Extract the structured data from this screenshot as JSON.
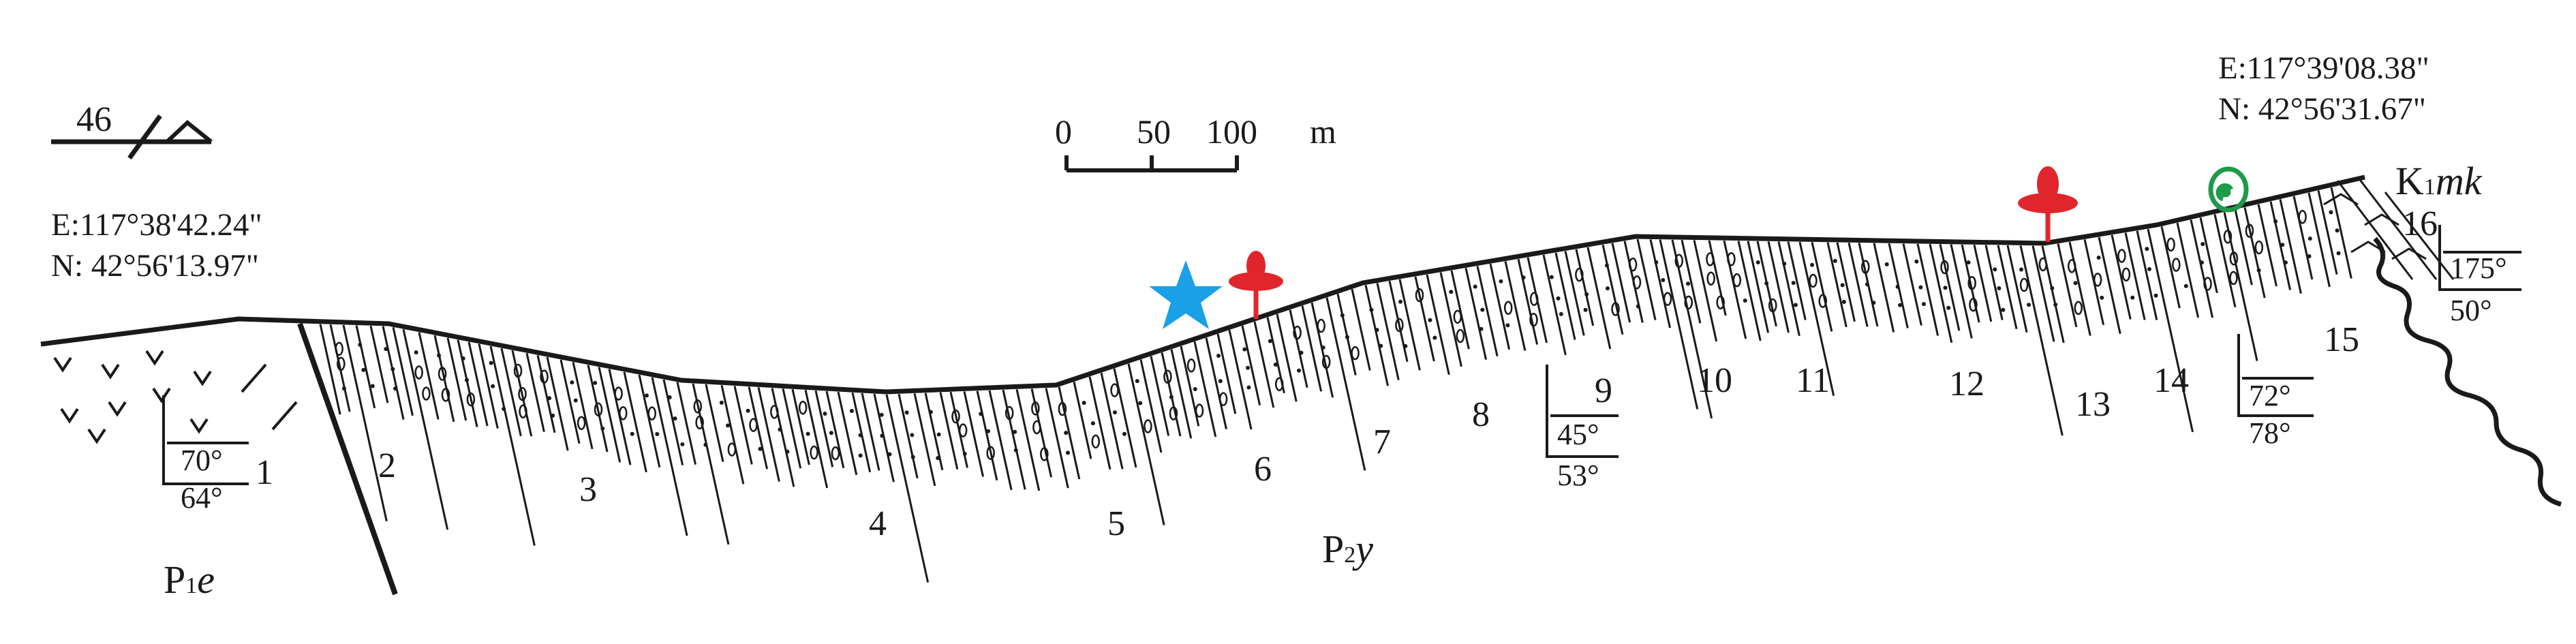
{
  "header": {
    "scale_ticks": [
      "0",
      "50",
      "100"
    ],
    "scale_unit": "m",
    "orientation_value": "46"
  },
  "coordinates": {
    "start": {
      "e": "E:117°38'42.24\"",
      "n": "N:  42°56'13.97\""
    },
    "end": {
      "e": "E:117°39'08.38\"",
      "n": "N:  42°56'31.67\""
    }
  },
  "units": [
    {
      "code": "P",
      "sub": "1",
      "italic": "e"
    },
    {
      "code": "P",
      "sub": "2",
      "italic": "y"
    },
    {
      "code": "K",
      "sub": "1",
      "italic": "mk"
    }
  ],
  "beds": [
    "1",
    "2",
    "3",
    "4",
    "5",
    "6",
    "7",
    "8",
    "9",
    "10",
    "11",
    "12",
    "13",
    "14",
    "15",
    "16"
  ],
  "attitudes": [
    {
      "top": "70°",
      "bottom": "64°"
    },
    {
      "top": "45°",
      "bottom": "53°"
    },
    {
      "top": "72°",
      "bottom": "78°"
    },
    {
      "top": "175°",
      "bottom": "50°"
    }
  ],
  "symbol_colors": {
    "star": "#1aa0e6",
    "plant": "#e0262c",
    "gastropod": "#1e9a4a",
    "line": "#1a1a1a"
  },
  "icons": [
    "orientation-arrow-icon",
    "star-icon",
    "plant-fossil-icon",
    "gastropod-icon",
    "unconformity-wave-icon"
  ]
}
